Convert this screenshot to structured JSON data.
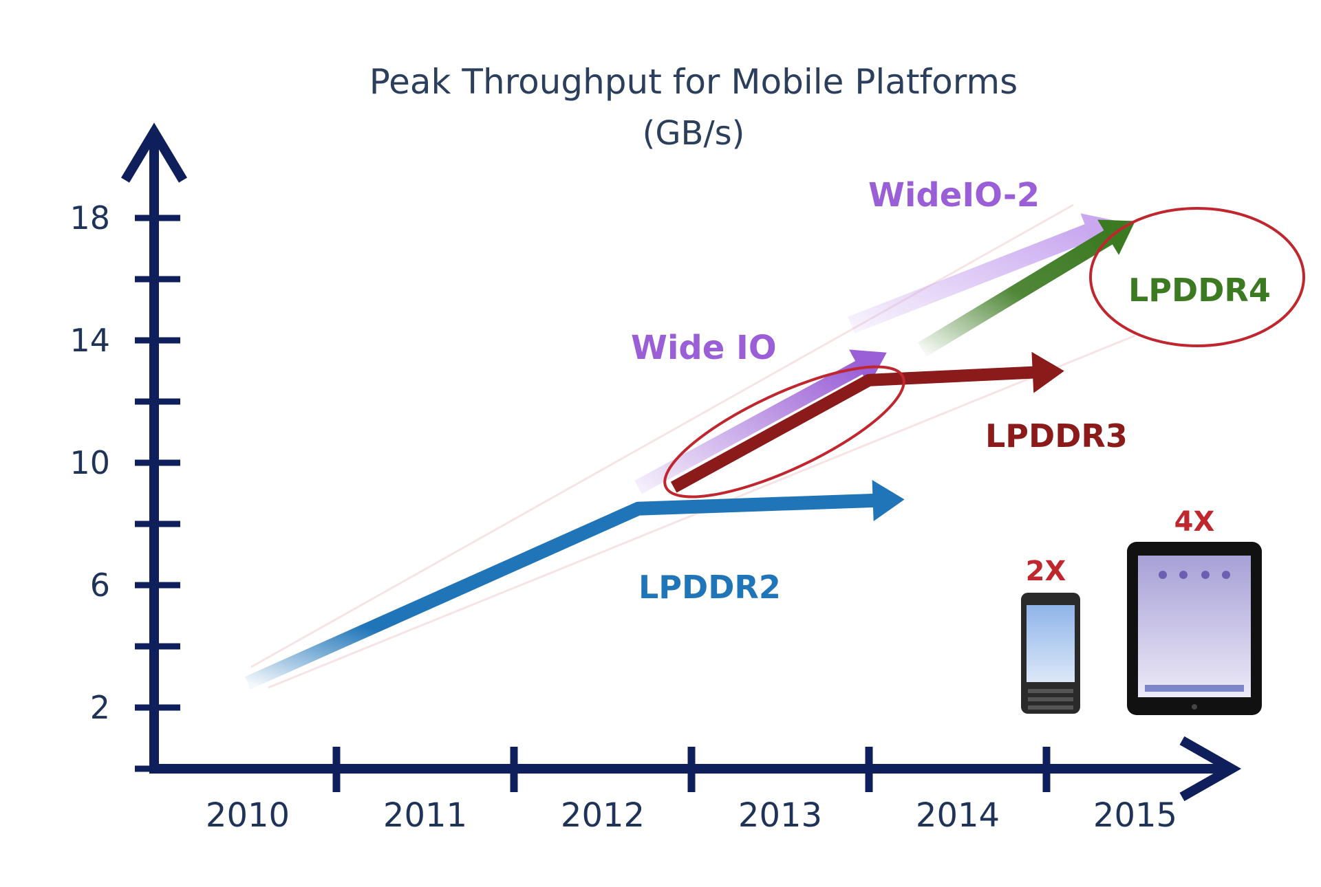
{
  "chart_data": {
    "type": "line",
    "title": "Peak Throughput for Mobile Platforms",
    "subtitle": "(GB/s)",
    "x_categories": [
      "2010",
      "2011",
      "2012",
      "2013",
      "2014",
      "2015"
    ],
    "y_ticks": [
      2,
      6,
      10,
      14,
      18
    ],
    "ylim": [
      0,
      20
    ],
    "grid": false,
    "series": [
      {
        "name": "LPDDR2",
        "color": "#1f75b8",
        "points": [
          [
            2010,
            2.8
          ],
          [
            2012.2,
            8.5
          ],
          [
            2013.7,
            8.8
          ]
        ]
      },
      {
        "name": "LPDDR3",
        "color": "#8b1a1a",
        "points": [
          [
            2012.4,
            9.2
          ],
          [
            2013.5,
            12.7
          ],
          [
            2014.6,
            13.0
          ]
        ]
      },
      {
        "name": "Wide IO",
        "color": "#9a5fd6",
        "points": [
          [
            2012.2,
            9.2
          ],
          [
            2013.6,
            13.6
          ]
        ]
      },
      {
        "name": "WideIO-2",
        "color": "#c9a8f0",
        "points": [
          [
            2013.4,
            14.5
          ],
          [
            2014.9,
            17.9
          ]
        ]
      },
      {
        "name": "LPDDR4",
        "color": "#3c7a22",
        "points": [
          [
            2013.8,
            13.7
          ],
          [
            2015.0,
            17.9
          ]
        ]
      }
    ],
    "annotations": [
      "2X",
      "4X"
    ],
    "icons": [
      "smartphone-icon",
      "tablet-icon"
    ]
  }
}
